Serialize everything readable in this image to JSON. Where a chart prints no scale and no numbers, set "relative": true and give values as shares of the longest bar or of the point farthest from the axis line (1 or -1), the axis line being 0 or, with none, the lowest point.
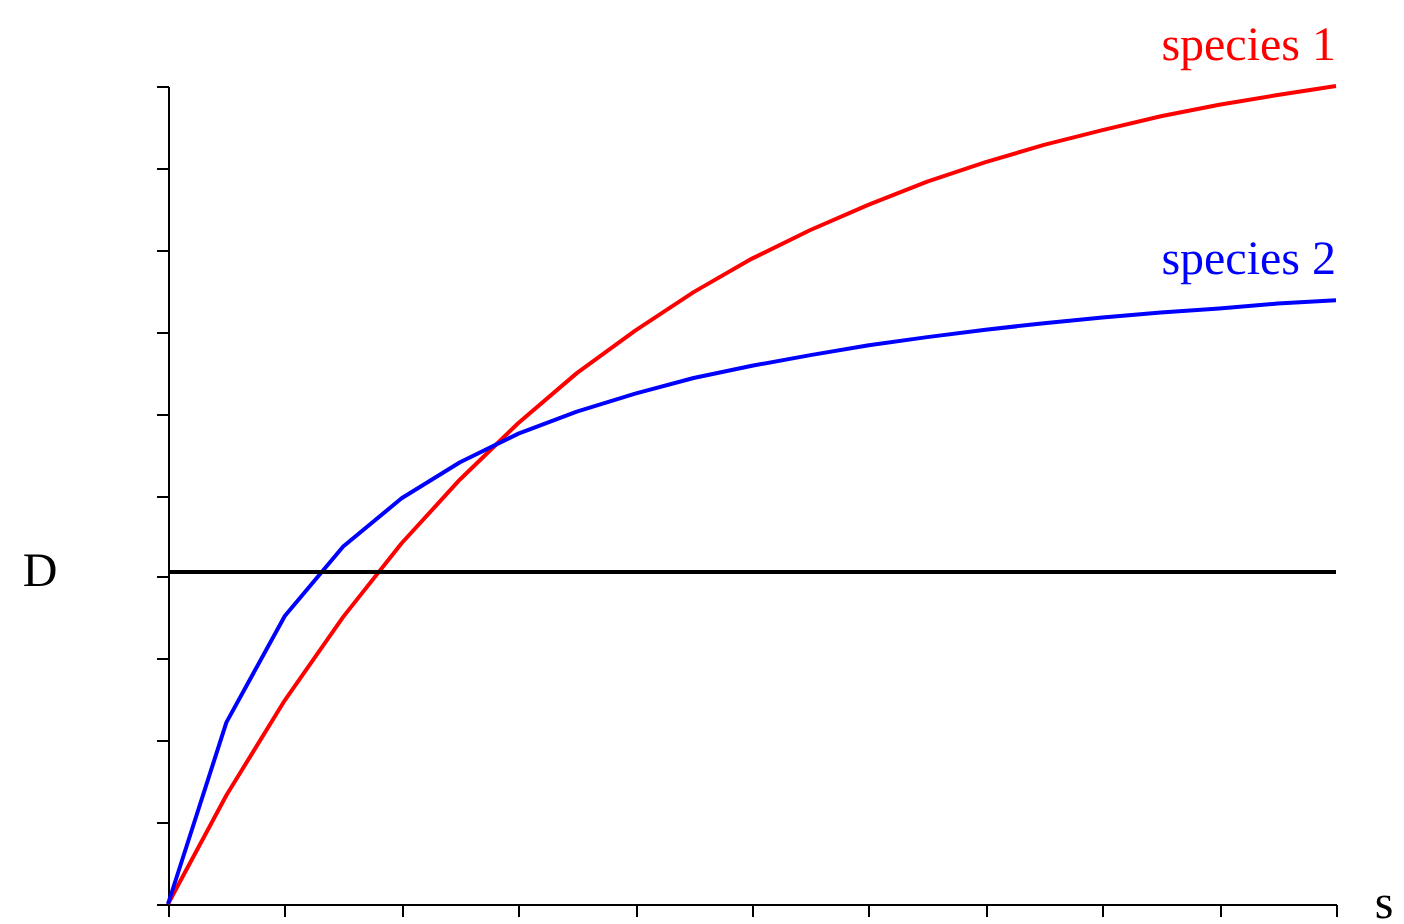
{
  "chart_data": {
    "type": "line",
    "relative": true,
    "xlabel": "s",
    "tick_labels": false,
    "grid": false,
    "marker": "none",
    "line_style": "solid",
    "categories": [
      null,
      null,
      null,
      null,
      null,
      null,
      null,
      null,
      null,
      null,
      null,
      null,
      null,
      null,
      null,
      null,
      null,
      null,
      null,
      null,
      null
    ],
    "series": [
      {
        "name": "species 1",
        "color": "#ff0000",
        "values": [
          0,
          0.133,
          0.249,
          0.351,
          0.441,
          0.519,
          0.588,
          0.649,
          0.701,
          0.748,
          0.789,
          0.824,
          0.855,
          0.883,
          0.907,
          0.928,
          0.946,
          0.963,
          0.977,
          0.989,
          1.0
        ]
      },
      {
        "name": "species 2",
        "color": "#0000ff",
        "values": [
          0,
          0.222,
          0.352,
          0.437,
          0.496,
          0.54,
          0.575,
          0.602,
          0.624,
          0.643,
          0.658,
          0.671,
          0.683,
          0.693,
          0.702,
          0.71,
          0.717,
          0.723,
          0.728,
          0.734,
          0.738
        ]
      }
    ],
    "ref_lines": [
      {
        "axis": "y",
        "value": 0.406,
        "label": "D",
        "color": "#000000"
      }
    ]
  }
}
